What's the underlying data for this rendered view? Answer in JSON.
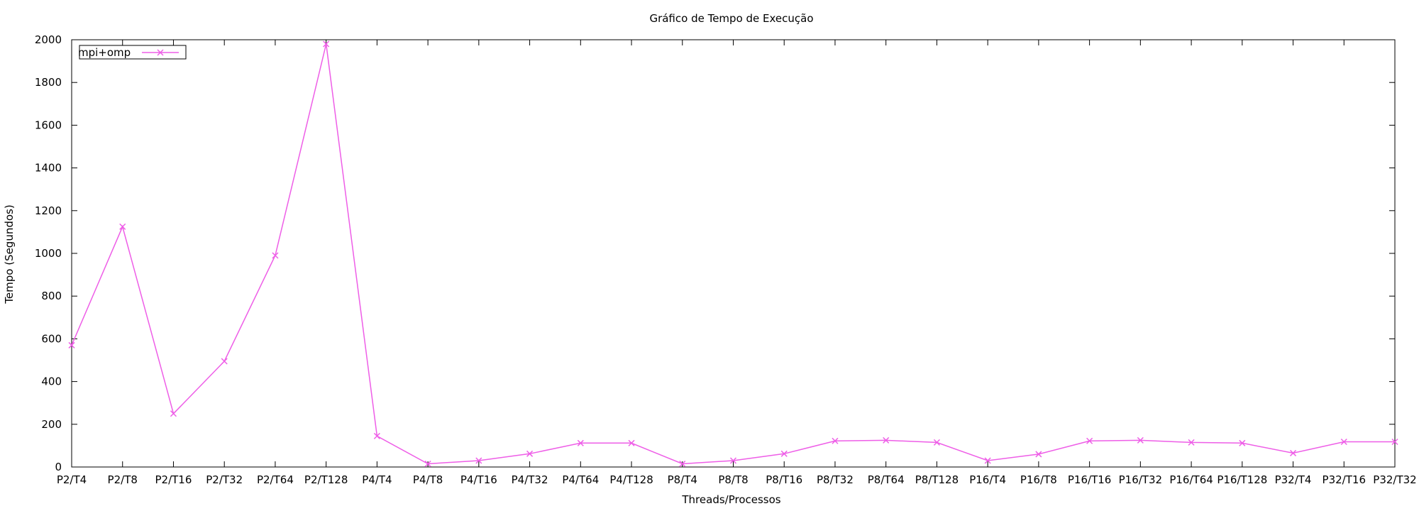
{
  "chart_data": {
    "type": "line",
    "title": "Gráfico de Tempo de Execução",
    "xlabel": "Threads/Processos",
    "ylabel": "Tempo (Segundos)",
    "ylim": [
      0,
      2000
    ],
    "yticks": [
      "0",
      "200",
      "400",
      "600",
      "800",
      "1000",
      "1200",
      "1400",
      "1600",
      "1800",
      "2000"
    ],
    "categories": [
      "P2/T4",
      "P2/T8",
      "P2/T16",
      "P2/T32",
      "P2/T64",
      "P2/T128",
      "P4/T4",
      "P4/T8",
      "P4/T16",
      "P4/T32",
      "P4/T64",
      "P4/T128",
      "P8/T4",
      "P8/T8",
      "P8/T16",
      "P8/T32",
      "P8/T64",
      "P8/T128",
      "P16/T4",
      "P16/T8",
      "P16/T16",
      "P16/T32",
      "P16/T64",
      "P16/T128",
      "P32/T4",
      "P32/T16",
      "P32/T32"
    ],
    "series": [
      {
        "name": "mpi+omp",
        "color": "#ee5ee7",
        "marker": "x",
        "values": [
          570,
          1125,
          250,
          495,
          990,
          1980,
          145,
          15,
          30,
          62,
          112,
          112,
          15,
          30,
          62,
          122,
          125,
          115,
          30,
          60,
          122,
          125,
          115,
          112,
          65,
          118,
          118
        ]
      }
    ],
    "grid": false,
    "legend_position": "top-left"
  }
}
